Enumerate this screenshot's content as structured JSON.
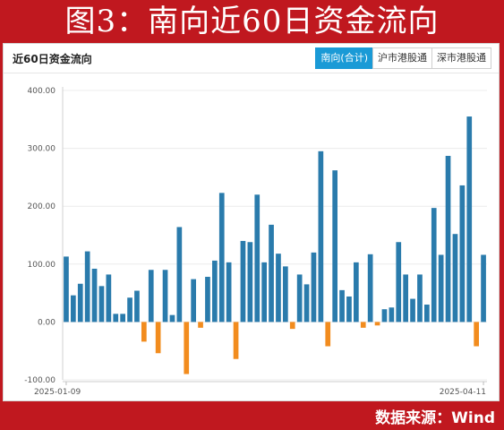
{
  "header": {
    "title": "图3：南向近60日资金流向"
  },
  "panel": {
    "title": "近60日资金流向",
    "tabs": [
      {
        "label": "南向(合计)",
        "active": true
      },
      {
        "label": "沪市港股通",
        "active": false
      },
      {
        "label": "深市港股通",
        "active": false
      }
    ]
  },
  "footer": {
    "source": "数据来源：Wind"
  },
  "colors": {
    "positive": "#2a7bac",
    "negative": "#f28c1e",
    "accent": "#c0181f",
    "tab_active": "#1a9ad6"
  },
  "chart_data": {
    "type": "bar",
    "ylim": [
      -100,
      400
    ],
    "y_ticks": [
      "400.00",
      "300.00",
      "200.00",
      "100.00",
      "0.00",
      "-100.00"
    ],
    "y_tick_values": [
      400,
      300,
      200,
      100,
      0,
      -100
    ],
    "x_labels": [
      "2025-01-09",
      "2025-04-11"
    ],
    "values": [
      113,
      46,
      66,
      122,
      92,
      62,
      82,
      14,
      14,
      42,
      54,
      -34,
      90,
      -54,
      90,
      12,
      164,
      -90,
      74,
      -10,
      78,
      106,
      223,
      103,
      -64,
      140,
      138,
      220,
      103,
      168,
      118,
      96,
      -12,
      82,
      65,
      120,
      295,
      -42,
      262,
      55,
      44,
      103,
      -10,
      117,
      -6,
      22,
      25,
      138,
      82,
      40,
      82,
      30,
      197,
      116,
      287,
      152,
      236,
      355,
      -42,
      116
    ]
  }
}
